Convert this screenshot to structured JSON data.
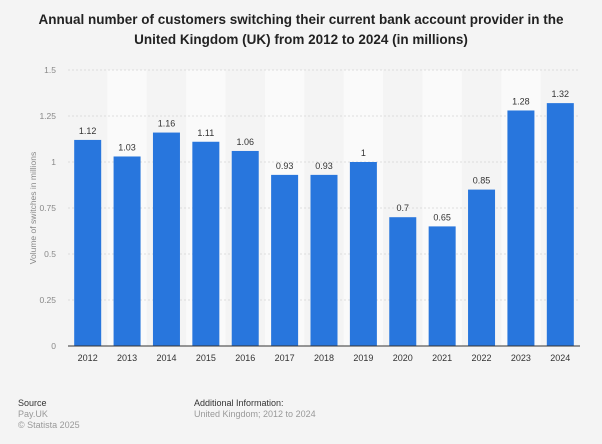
{
  "chart_data": {
    "type": "bar",
    "title": "Annual number of customers switching their current bank account provider in the United Kingdom (UK) from 2012 to 2024 (in millions)",
    "categories": [
      "2012",
      "2013",
      "2014",
      "2015",
      "2016",
      "2017",
      "2018",
      "2019",
      "2020",
      "2021",
      "2022",
      "2023",
      "2024"
    ],
    "values": [
      1.12,
      1.03,
      1.16,
      1.11,
      1.06,
      0.93,
      0.93,
      1,
      0.7,
      0.65,
      0.85,
      1.28,
      1.32
    ],
    "value_labels": [
      "1.12",
      "1.03",
      "1.16",
      "1.11",
      "1.06",
      "0.93",
      "0.93",
      "1",
      "0.7",
      "0.65",
      "0.85",
      "1.28",
      "1.32"
    ],
    "xlabel": "",
    "ylabel": "Volume of switches in millions",
    "ylim": [
      0,
      1.5
    ],
    "yticks": [
      "0",
      "0.25",
      "0.5",
      "0.75",
      "1",
      "1.25",
      "1.5"
    ],
    "grid": true,
    "bar_color": "#2876dd"
  },
  "footer": {
    "source_heading": "Source",
    "source": "Pay.UK",
    "copyright": "© Statista 2025",
    "info_heading": "Additional Information:",
    "info": "United Kingdom; 2012 to 2024"
  }
}
